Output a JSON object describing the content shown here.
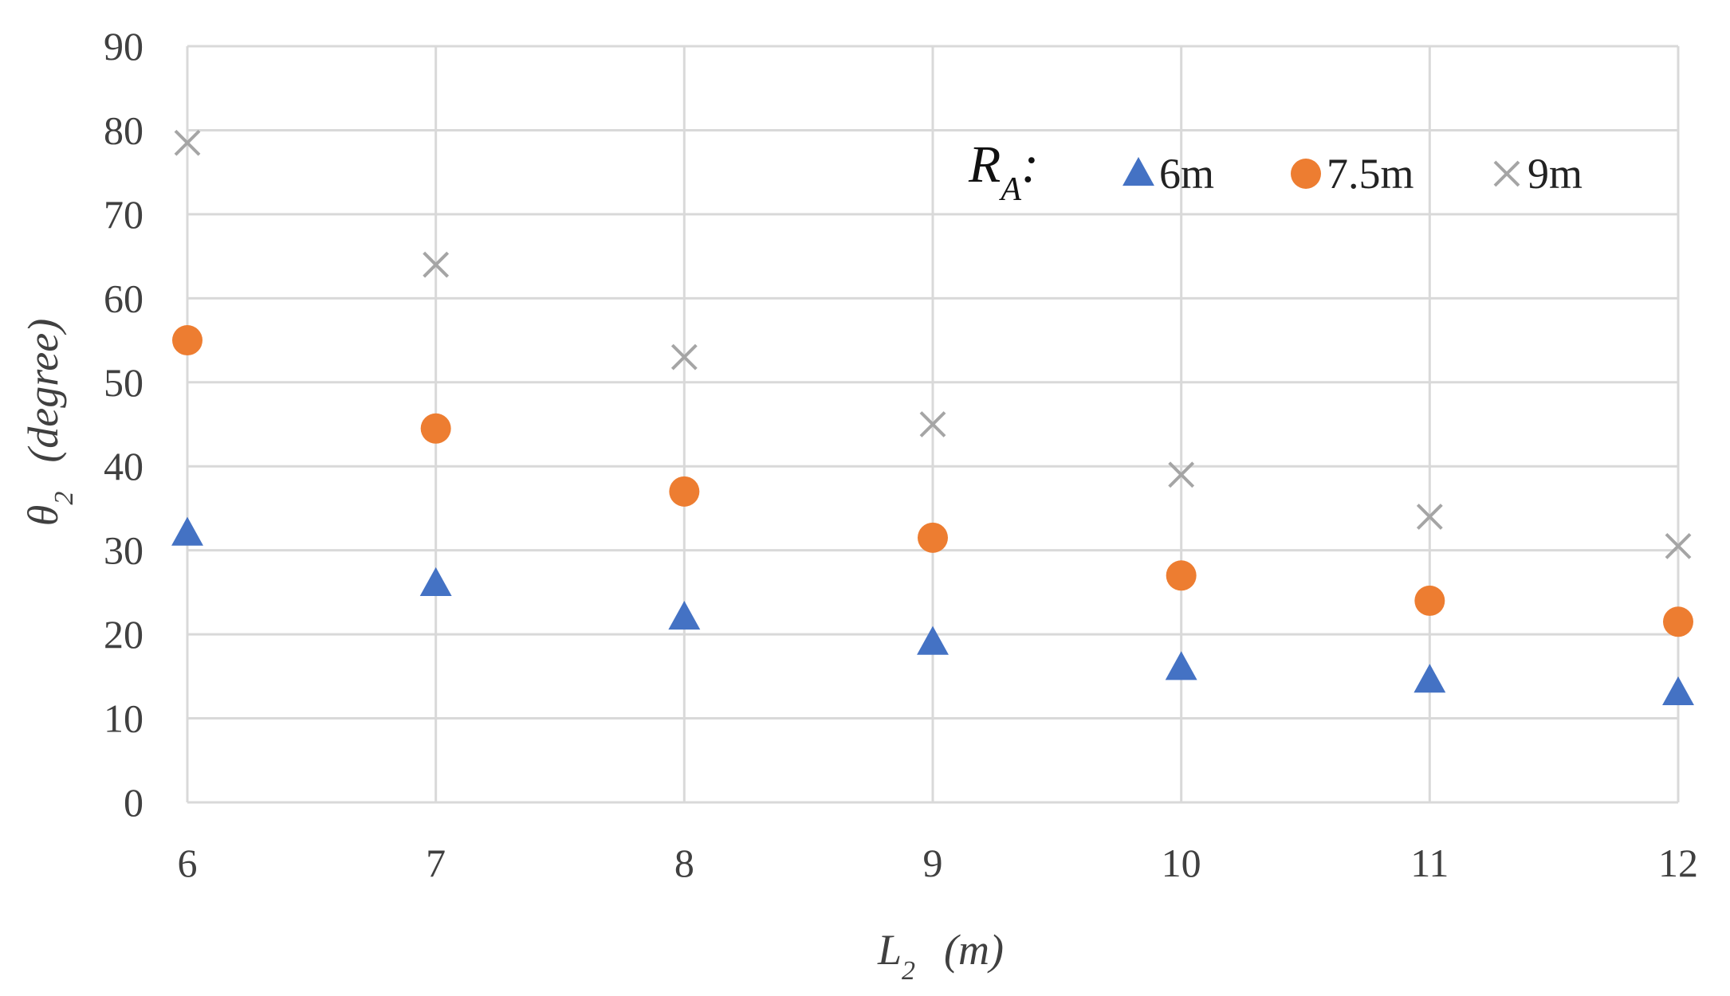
{
  "chart_data": {
    "type": "scatter",
    "xlabel": {
      "main": "L",
      "sub": "2",
      "unit": "(m)"
    },
    "ylabel": {
      "main": "θ",
      "sub": "2",
      "unit": "(degree)"
    },
    "xlim": [
      6,
      12
    ],
    "ylim": [
      0,
      90
    ],
    "x_ticks": [
      6,
      7,
      8,
      9,
      10,
      11,
      12
    ],
    "y_ticks": [
      0,
      10,
      20,
      30,
      40,
      50,
      60,
      70,
      80,
      90
    ],
    "grid": true,
    "legend": {
      "position": "top-right",
      "title_main": "R",
      "title_sub": "A",
      "title_suffix": ":"
    },
    "x": [
      6,
      7,
      8,
      9,
      10,
      11,
      12
    ],
    "series": [
      {
        "name": "6m",
        "marker": "triangle",
        "color": "#4472C4",
        "values": [
          32,
          26,
          22,
          19,
          16,
          14.5,
          13
        ]
      },
      {
        "name": "7.5m",
        "marker": "circle",
        "color": "#ED7D31",
        "values": [
          55,
          44.5,
          37,
          31.5,
          27,
          24,
          21.5
        ]
      },
      {
        "name": "9m",
        "marker": "cross",
        "color": "#A5A5A5",
        "values": [
          78.5,
          64,
          53,
          45,
          39,
          34,
          30.5
        ]
      }
    ]
  }
}
